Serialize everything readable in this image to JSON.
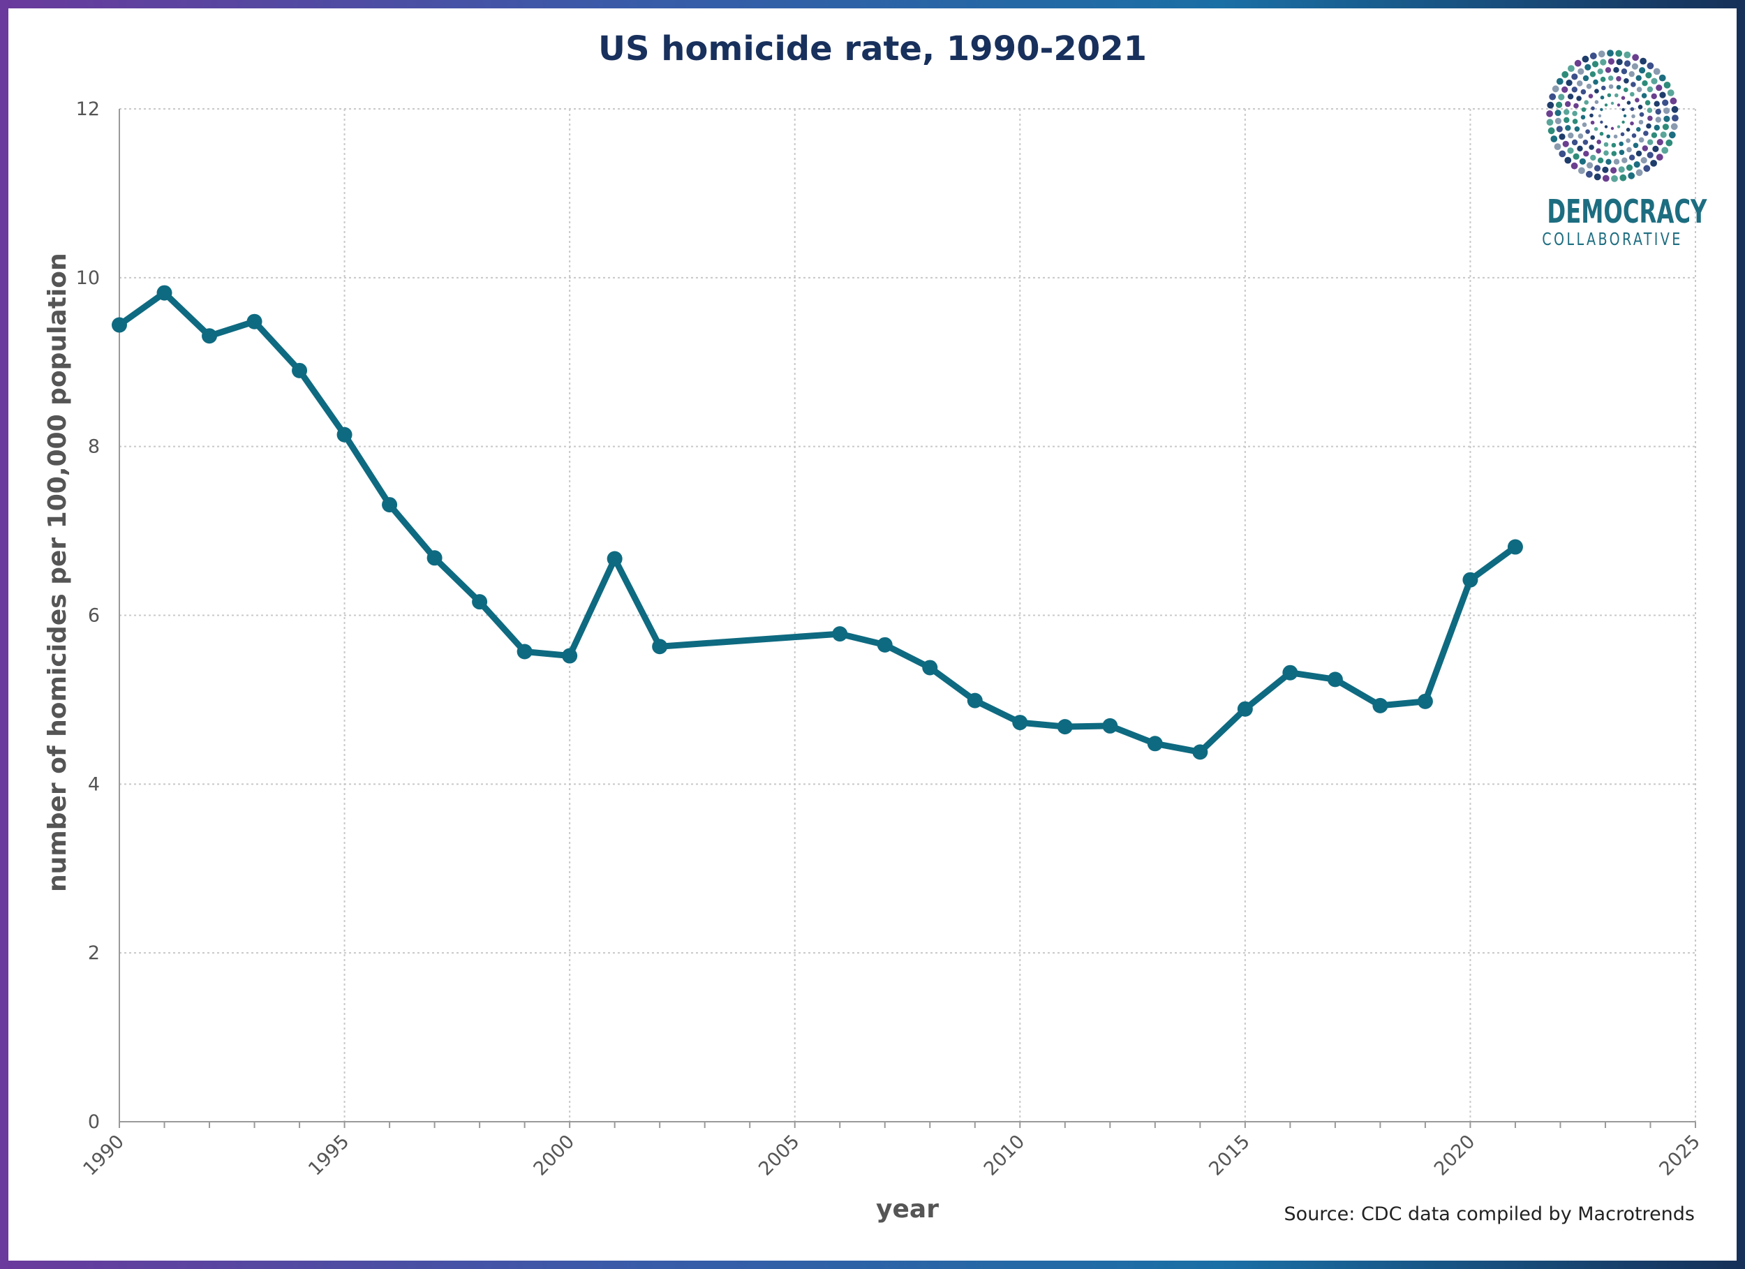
{
  "colors": {
    "line": "#0e6a80",
    "grid": "#c8c8c8",
    "title": "#18305c",
    "logo": "#1d6d80"
  },
  "header": {
    "title": "US homicide rate, 1990-2021"
  },
  "logo": {
    "line1": "DEMOCRACY",
    "line2": "COLLABORATIVE"
  },
  "footer": {
    "source": "Source: CDC data compiled by Macrotrends"
  },
  "chart_data": {
    "type": "line",
    "title": "US homicide rate, 1990-2021",
    "xlabel": "year",
    "ylabel": "number of homicides per 100,000 population",
    "xlim": [
      1990,
      2025
    ],
    "ylim": [
      0,
      12
    ],
    "x_ticks": [
      "1990",
      "1995",
      "2000",
      "2005",
      "2010",
      "2015",
      "2020",
      "2025"
    ],
    "y_ticks": [
      "0",
      "2",
      "4",
      "6",
      "8",
      "10",
      "12"
    ],
    "grid": true,
    "series": [
      {
        "x": [
          1990,
          1991,
          1992,
          1993,
          1994,
          1995,
          1996,
          1997,
          1998,
          1999,
          2000,
          2001,
          2002,
          2006,
          2007,
          2008,
          2009,
          2010,
          2011,
          2012,
          2013,
          2014,
          2015,
          2016,
          2017,
          2018,
          2019,
          2020,
          2021
        ],
        "values": [
          9.44,
          9.82,
          9.31,
          9.48,
          8.9,
          8.14,
          7.31,
          6.68,
          6.16,
          5.57,
          5.52,
          6.67,
          5.63,
          5.78,
          5.65,
          5.38,
          4.99,
          4.73,
          4.68,
          4.69,
          4.48,
          4.38,
          4.89,
          5.32,
          5.24,
          4.93,
          4.98,
          6.42,
          6.81
        ]
      }
    ]
  }
}
